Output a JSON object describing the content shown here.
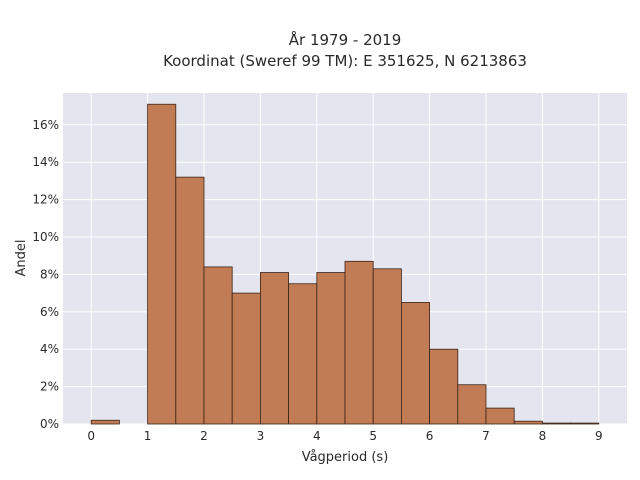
{
  "chart_data": {
    "type": "bar",
    "title": [
      "År 1979 - 2019",
      "Koordinat (Sweref 99 TM): E 351625, N 6213863"
    ],
    "xlabel": "Vågperiod (s)",
    "ylabel": "Andel",
    "bin_width": 0.5,
    "bins": [
      {
        "x0": 0.0,
        "x1": 0.5,
        "value": 0.2
      },
      {
        "x0": 0.5,
        "x1": 1.0,
        "value": 0.0
      },
      {
        "x0": 1.0,
        "x1": 1.5,
        "value": 17.1
      },
      {
        "x0": 1.5,
        "x1": 2.0,
        "value": 13.2
      },
      {
        "x0": 2.0,
        "x1": 2.5,
        "value": 8.4
      },
      {
        "x0": 2.5,
        "x1": 3.0,
        "value": 7.0
      },
      {
        "x0": 3.0,
        "x1": 3.5,
        "value": 8.1
      },
      {
        "x0": 3.5,
        "x1": 4.0,
        "value": 7.5
      },
      {
        "x0": 4.0,
        "x1": 4.5,
        "value": 8.1
      },
      {
        "x0": 4.5,
        "x1": 5.0,
        "value": 8.7
      },
      {
        "x0": 5.0,
        "x1": 5.5,
        "value": 8.3
      },
      {
        "x0": 5.5,
        "x1": 6.0,
        "value": 6.5
      },
      {
        "x0": 6.0,
        "x1": 6.5,
        "value": 4.0
      },
      {
        "x0": 6.5,
        "x1": 7.0,
        "value": 2.1
      },
      {
        "x0": 7.0,
        "x1": 7.5,
        "value": 0.85
      },
      {
        "x0": 7.5,
        "x1": 8.0,
        "value": 0.15
      },
      {
        "x0": 8.0,
        "x1": 8.5,
        "value": 0.05
      },
      {
        "x0": 8.5,
        "x1": 9.0,
        "value": 0.05
      }
    ],
    "xticks": [
      0,
      1,
      2,
      3,
      4,
      5,
      6,
      7,
      8,
      9
    ],
    "yticks": [
      0,
      2,
      4,
      6,
      8,
      10,
      12,
      14,
      16
    ],
    "ytick_suffix": "%",
    "xlim": [
      -0.5,
      9.5
    ],
    "ylim": [
      0,
      17.7
    ],
    "grid": true,
    "colors": {
      "plot_background": "#e5e5ef",
      "grid": "#ffffff",
      "bar_fill": "#c17b55",
      "bar_edge": "#3a2418",
      "text": "#2a2a2a"
    }
  }
}
